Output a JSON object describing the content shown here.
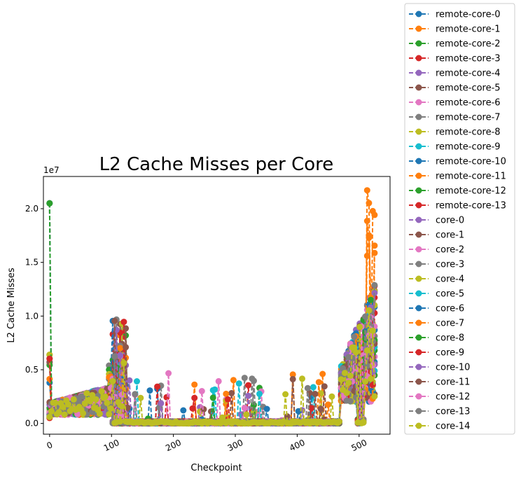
{
  "chart_data": {
    "type": "line",
    "title": "L2 Cache Misses per Core",
    "xlabel": "Checkpoint",
    "ylabel": "L2 Cache Misses",
    "y_offset_label": "1e7",
    "xlim": [
      -10,
      550
    ],
    "ylim": [
      -1000000,
      23000000
    ],
    "x_ticks": [
      0,
      100,
      200,
      300,
      400,
      500
    ],
    "y_ticks": [
      0,
      5000000,
      10000000,
      15000000,
      20000000
    ],
    "y_tick_labels": [
      "0.0",
      "0.5",
      "1.0",
      "1.5",
      "2.0"
    ],
    "x_tick_labels": [
      "0",
      "100",
      "200",
      "300",
      "400",
      "500"
    ],
    "grid": false,
    "legend_position": "outside-right",
    "line_style": "dashed",
    "marker": "circle",
    "series": [
      {
        "name": "remote-core-0",
        "color": "#1f77b4"
      },
      {
        "name": "remote-core-1",
        "color": "#ff7f0e"
      },
      {
        "name": "remote-core-2",
        "color": "#2ca02c"
      },
      {
        "name": "remote-core-3",
        "color": "#d62728"
      },
      {
        "name": "remote-core-4",
        "color": "#9467bd"
      },
      {
        "name": "remote-core-5",
        "color": "#8c564b"
      },
      {
        "name": "remote-core-6",
        "color": "#e377c2"
      },
      {
        "name": "remote-core-7",
        "color": "#7f7f7f"
      },
      {
        "name": "remote-core-8",
        "color": "#bcbd22"
      },
      {
        "name": "remote-core-9",
        "color": "#17becf"
      },
      {
        "name": "remote-core-10",
        "color": "#1f77b4"
      },
      {
        "name": "remote-core-11",
        "color": "#ff7f0e"
      },
      {
        "name": "remote-core-12",
        "color": "#2ca02c"
      },
      {
        "name": "remote-core-13",
        "color": "#d62728"
      },
      {
        "name": "core-0",
        "color": "#9467bd"
      },
      {
        "name": "core-1",
        "color": "#8c564b"
      },
      {
        "name": "core-2",
        "color": "#e377c2"
      },
      {
        "name": "core-3",
        "color": "#7f7f7f"
      },
      {
        "name": "core-4",
        "color": "#bcbd22"
      },
      {
        "name": "core-5",
        "color": "#17becf"
      },
      {
        "name": "core-6",
        "color": "#1f77b4"
      },
      {
        "name": "core-7",
        "color": "#ff7f0e"
      },
      {
        "name": "core-8",
        "color": "#2ca02c"
      },
      {
        "name": "core-9",
        "color": "#d62728"
      },
      {
        "name": "core-10",
        "color": "#9467bd"
      },
      {
        "name": "core-11",
        "color": "#8c564b"
      },
      {
        "name": "core-12",
        "color": "#e377c2"
      },
      {
        "name": "core-13",
        "color": "#7f7f7f"
      },
      {
        "name": "core-14",
        "color": "#bcbd22"
      }
    ],
    "phases": [
      {
        "x_start": 0,
        "x_end": 100,
        "typical_min": 800000,
        "typical_max": 3500000,
        "spike_x": 0,
        "spike_max": 20500000
      },
      {
        "x_start": 100,
        "x_end": 470,
        "typical_min": 0,
        "typical_max": 200000,
        "spike_max": 9700000
      },
      {
        "x_start": 470,
        "x_end": 525,
        "typical_min": 2000000,
        "typical_max": 13000000,
        "spike_max": 21900000
      }
    ]
  }
}
